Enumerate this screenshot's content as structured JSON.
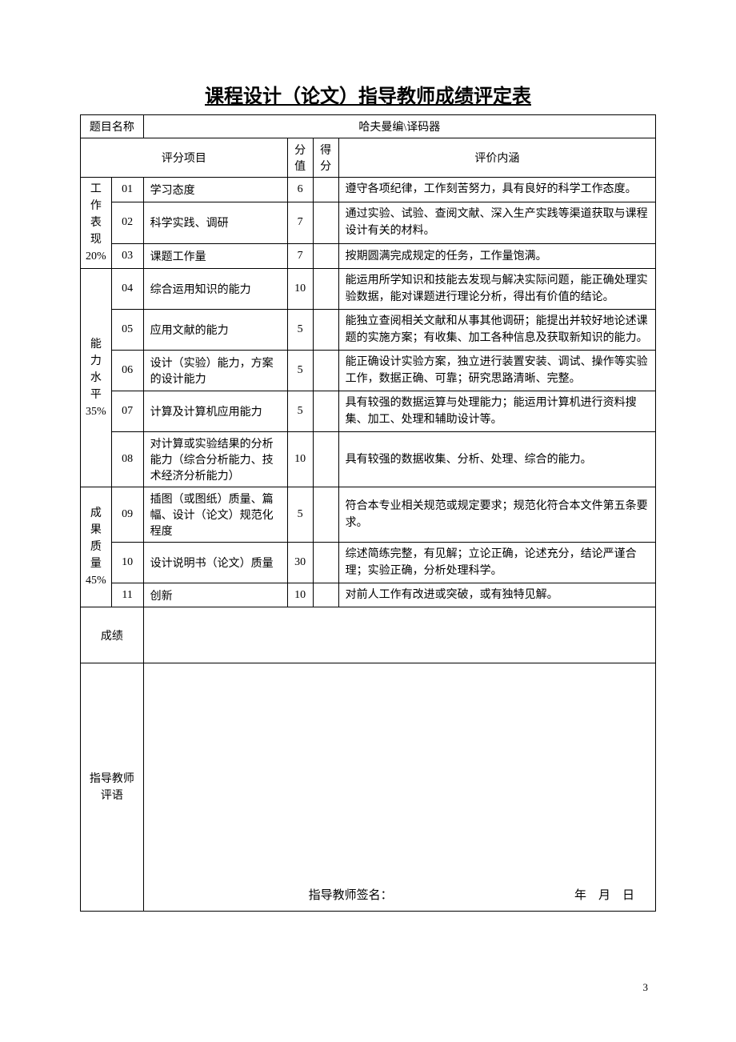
{
  "page": {
    "title": "课程设计（论文）指导教师成绩评定表",
    "page_number": "3"
  },
  "subject": {
    "label": "题目名称",
    "value": "哈夫曼编\\译码器"
  },
  "headers": {
    "item": "评分项目",
    "score": "分值",
    "got": "得分",
    "content": "评价内涵"
  },
  "categories": [
    {
      "name": "工作表现",
      "percent": "20%",
      "rows": [
        {
          "num": "01",
          "item": "学习态度",
          "score": "6",
          "content": "遵守各项纪律，工作刻苦努力，具有良好的科学工作态度。"
        },
        {
          "num": "02",
          "item": "科学实践、调研",
          "score": "7",
          "content": "通过实验、试验、查阅文献、深入生产实践等渠道获取与课程设计有关的材料。"
        },
        {
          "num": "03",
          "item": "课题工作量",
          "score": "7",
          "content": "按期圆满完成规定的任务，工作量饱满。"
        }
      ]
    },
    {
      "name": "能力水平",
      "percent": "35%",
      "rows": [
        {
          "num": "04",
          "item": "综合运用知识的能力",
          "score": "10",
          "content": "能运用所学知识和技能去发现与解决实际问题，能正确处理实验数据，能对课题进行理论分析，得出有价值的结论。"
        },
        {
          "num": "05",
          "item": "应用文献的能力",
          "score": "5",
          "content": "能独立查阅相关文献和从事其他调研；能提出并较好地论述课题的实施方案；有收集、加工各种信息及获取新知识的能力。"
        },
        {
          "num": "06",
          "item": "设计（实验）能力，方案的设计能力",
          "score": "5",
          "content": "能正确设计实验方案，独立进行装置安装、调试、操作等实验工作，数据正确、可靠；研究思路清晰、完整。"
        },
        {
          "num": "07",
          "item": "计算及计算机应用能力",
          "score": "5",
          "content": "具有较强的数据运算与处理能力；能运用计算机进行资料搜集、加工、处理和辅助设计等。"
        },
        {
          "num": "08",
          "item": "对计算或实验结果的分析能力（综合分析能力、技术经济分析能力）",
          "score": "10",
          "content": "具有较强的数据收集、分析、处理、综合的能力。"
        }
      ]
    },
    {
      "name": "成果质量",
      "percent": "45%",
      "rows": [
        {
          "num": "09",
          "item": "插图（或图纸）质量、篇幅、设计（论文）规范化程度",
          "score": "5",
          "content": "符合本专业相关规范或规定要求；规范化符合本文件第五条要求。"
        },
        {
          "num": "10",
          "item": "设计说明书（论文）质量",
          "score": "30",
          "content": "综述简练完整，有见解；立论正确，论述充分，结论严谨合理；实验正确，分析处理科学。"
        },
        {
          "num": "11",
          "item": "创新",
          "score": "10",
          "content": "对前人工作有改进或突破，或有独特见解。"
        }
      ]
    }
  ],
  "grade_label": "成绩",
  "comment": {
    "label": "指导教师评语",
    "signature_label": "指导教师签名：",
    "year": "年",
    "month": "月",
    "day": "日"
  }
}
